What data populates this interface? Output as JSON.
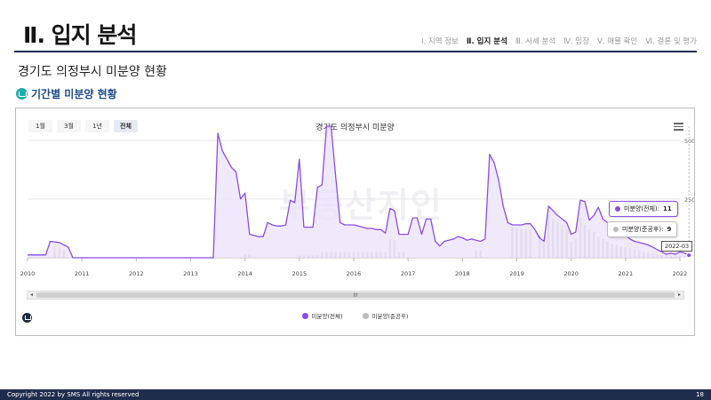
{
  "header": {
    "title": "Ⅱ. 입지 분석",
    "nav": [
      {
        "label": "Ⅰ. 지역 정보",
        "active": false
      },
      {
        "label": "Ⅱ. 입지 분석",
        "active": true
      },
      {
        "label": "Ⅲ. 시세 분석",
        "active": false
      },
      {
        "label": "Ⅳ. 임장",
        "active": false
      },
      {
        "label": "Ⅴ. 매물 확인",
        "active": false
      },
      {
        "label": "Ⅵ. 결론 및 평가",
        "active": false
      }
    ]
  },
  "subtitle": "경기도 의정부시 미분양 현황",
  "section": {
    "label": "기간별 미분양 현황",
    "icon": "home-icon"
  },
  "chart_panel": {
    "range_buttons": [
      "1월",
      "3월",
      "1년",
      "전체"
    ],
    "active_range": "전체",
    "menu_icon": "hamburger-menu-icon",
    "watermark": "부동산지인",
    "scroll_grip": "III",
    "scroll_left": "◂",
    "scroll_right": "▸",
    "brand_icon": "brand-logo-icon"
  },
  "tooltip": {
    "total_label": "미분양(전체):",
    "total_value": "11",
    "completed_label": "미분양(준공후):",
    "completed_value": "9",
    "date": "2022-03"
  },
  "footer": {
    "copyright": "Copyright 2022 by SMS All rights reserved",
    "page": "18"
  },
  "chart_data": {
    "type": "line",
    "title": "경기도 의정부시 미분양",
    "colors": {
      "total": "#8a4ce6",
      "completed": "#bdbdbd",
      "total_fill": "#ece4fb"
    },
    "x_tick_labels": [
      "2010",
      "2011",
      "2012",
      "2013",
      "2014",
      "2015",
      "2016",
      "2017",
      "2018",
      "2019",
      "2020",
      "2021",
      "2022"
    ],
    "y_tick_labels": [
      "500",
      "250"
    ],
    "ylim": [
      0,
      560
    ],
    "grid": true,
    "legend_position": "bottom",
    "series": [
      {
        "name": "미분양(전체)",
        "style": "area-line",
        "points": [
          [
            "2010-01",
            12
          ],
          [
            "2010-05",
            12
          ],
          [
            "2010-06",
            70
          ],
          [
            "2010-08",
            65
          ],
          [
            "2010-10",
            45
          ],
          [
            "2010-11",
            0
          ],
          [
            "2013-06",
            0
          ],
          [
            "2013-07",
            530
          ],
          [
            "2013-08",
            455
          ],
          [
            "2013-09",
            420
          ],
          [
            "2013-10",
            385
          ],
          [
            "2013-11",
            365
          ],
          [
            "2013-12",
            250
          ],
          [
            "2014-01",
            275
          ],
          [
            "2014-02",
            100
          ],
          [
            "2014-03",
            95
          ],
          [
            "2014-04",
            90
          ],
          [
            "2014-05",
            90
          ],
          [
            "2014-06",
            150
          ],
          [
            "2014-07",
            140
          ],
          [
            "2014-08",
            135
          ],
          [
            "2014-09",
            135
          ],
          [
            "2014-10",
            140
          ],
          [
            "2014-11",
            245
          ],
          [
            "2014-12",
            235
          ],
          [
            "2015-01",
            420
          ],
          [
            "2015-02",
            130
          ],
          [
            "2015-03",
            130
          ],
          [
            "2015-04",
            130
          ],
          [
            "2015-05",
            300
          ],
          [
            "2015-06",
            310
          ],
          [
            "2015-07",
            880
          ],
          [
            "2015-08",
            570
          ],
          [
            "2015-09",
            350
          ],
          [
            "2015-10",
            150
          ],
          [
            "2015-11",
            140
          ],
          [
            "2015-12",
            140
          ],
          [
            "2016-01",
            140
          ],
          [
            "2016-02",
            135
          ],
          [
            "2016-03",
            130
          ],
          [
            "2016-04",
            125
          ],
          [
            "2016-05",
            125
          ],
          [
            "2016-06",
            120
          ],
          [
            "2016-07",
            120
          ],
          [
            "2016-08",
            105
          ],
          [
            "2016-09",
            210
          ],
          [
            "2016-10",
            200
          ],
          [
            "2016-11",
            100
          ],
          [
            "2016-12",
            100
          ],
          [
            "2017-01",
            100
          ],
          [
            "2017-02",
            170
          ],
          [
            "2017-03",
            170
          ],
          [
            "2017-04",
            100
          ],
          [
            "2017-05",
            165
          ],
          [
            "2017-06",
            165
          ],
          [
            "2017-07",
            70
          ],
          [
            "2017-08",
            50
          ],
          [
            "2017-09",
            70
          ],
          [
            "2017-10",
            75
          ],
          [
            "2017-11",
            80
          ],
          [
            "2017-12",
            90
          ],
          [
            "2018-01",
            85
          ],
          [
            "2018-02",
            75
          ],
          [
            "2018-03",
            80
          ],
          [
            "2018-04",
            75
          ],
          [
            "2018-05",
            70
          ],
          [
            "2018-06",
            80
          ],
          [
            "2018-07",
            440
          ],
          [
            "2018-08",
            405
          ],
          [
            "2018-09",
            330
          ],
          [
            "2018-10",
            220
          ],
          [
            "2018-11",
            150
          ],
          [
            "2018-12",
            140
          ],
          [
            "2019-01",
            140
          ],
          [
            "2019-02",
            140
          ],
          [
            "2019-03",
            145
          ],
          [
            "2019-04",
            145
          ],
          [
            "2019-05",
            120
          ],
          [
            "2019-06",
            85
          ],
          [
            "2019-07",
            70
          ],
          [
            "2019-08",
            220
          ],
          [
            "2019-09",
            200
          ],
          [
            "2019-10",
            180
          ],
          [
            "2019-11",
            165
          ],
          [
            "2019-12",
            150
          ],
          [
            "2020-01",
            100
          ],
          [
            "2020-02",
            110
          ],
          [
            "2020-03",
            245
          ],
          [
            "2020-04",
            240
          ],
          [
            "2020-05",
            160
          ],
          [
            "2020-06",
            180
          ],
          [
            "2020-07",
            215
          ],
          [
            "2020-08",
            165
          ],
          [
            "2020-09",
            150
          ],
          [
            "2020-10",
            140
          ],
          [
            "2020-11",
            130
          ],
          [
            "2020-12",
            115
          ],
          [
            "2021-01",
            95
          ],
          [
            "2021-02",
            80
          ],
          [
            "2021-03",
            70
          ],
          [
            "2021-04",
            65
          ],
          [
            "2021-05",
            60
          ],
          [
            "2021-06",
            55
          ],
          [
            "2021-07",
            45
          ],
          [
            "2021-08",
            35
          ],
          [
            "2021-09",
            25
          ],
          [
            "2021-10",
            15
          ],
          [
            "2021-11",
            20
          ],
          [
            "2021-12",
            15
          ],
          [
            "2022-01",
            25
          ],
          [
            "2022-02",
            20
          ],
          [
            "2022-03",
            11
          ]
        ]
      },
      {
        "name": "미분양(준공후)",
        "style": "bar",
        "points": [
          [
            "2010-07",
            40
          ],
          [
            "2010-08",
            40
          ],
          [
            "2010-09",
            30
          ],
          [
            "2014-01",
            15
          ],
          [
            "2014-02",
            15
          ],
          [
            "2015-01",
            10
          ],
          [
            "2015-02",
            10
          ],
          [
            "2015-03",
            10
          ],
          [
            "2015-04",
            10
          ],
          [
            "2015-05",
            10
          ],
          [
            "2015-06",
            25
          ],
          [
            "2015-07",
            25
          ],
          [
            "2015-08",
            25
          ],
          [
            "2015-09",
            25
          ],
          [
            "2015-10",
            25
          ],
          [
            "2015-11",
            25
          ],
          [
            "2015-12",
            25
          ],
          [
            "2016-01",
            25
          ],
          [
            "2016-02",
            25
          ],
          [
            "2016-03",
            25
          ],
          [
            "2016-04",
            25
          ],
          [
            "2016-05",
            25
          ],
          [
            "2016-06",
            25
          ],
          [
            "2016-07",
            25
          ],
          [
            "2016-08",
            25
          ],
          [
            "2016-09",
            80
          ],
          [
            "2016-10",
            75
          ],
          [
            "2016-11",
            25
          ],
          [
            "2016-12",
            25
          ],
          [
            "2018-04",
            30
          ],
          [
            "2018-05",
            30
          ],
          [
            "2018-12",
            130
          ],
          [
            "2019-01",
            125
          ],
          [
            "2019-02",
            120
          ],
          [
            "2019-03",
            120
          ],
          [
            "2019-04",
            120
          ],
          [
            "2019-06",
            95
          ],
          [
            "2019-07",
            75
          ],
          [
            "2019-08",
            180
          ],
          [
            "2019-09",
            165
          ],
          [
            "2019-10",
            150
          ],
          [
            "2019-11",
            140
          ],
          [
            "2019-12",
            120
          ],
          [
            "2020-01",
            70
          ],
          [
            "2020-02",
            80
          ],
          [
            "2020-03",
            170
          ],
          [
            "2020-04",
            140
          ],
          [
            "2020-05",
            120
          ],
          [
            "2020-06",
            110
          ],
          [
            "2020-07",
            90
          ],
          [
            "2020-08",
            80
          ],
          [
            "2020-09",
            70
          ],
          [
            "2020-10",
            60
          ],
          [
            "2020-11",
            55
          ],
          [
            "2020-12",
            50
          ],
          [
            "2021-01",
            45
          ],
          [
            "2021-02",
            40
          ],
          [
            "2021-03",
            35
          ],
          [
            "2021-04",
            30
          ],
          [
            "2021-05",
            25
          ],
          [
            "2021-06",
            20
          ],
          [
            "2021-07",
            18
          ],
          [
            "2021-08",
            15
          ],
          [
            "2021-09",
            12
          ],
          [
            "2021-10",
            10
          ],
          [
            "2021-11",
            10
          ],
          [
            "2021-12",
            10
          ],
          [
            "2022-01",
            10
          ],
          [
            "2022-02",
            10
          ],
          [
            "2022-03",
            9
          ]
        ]
      }
    ]
  }
}
